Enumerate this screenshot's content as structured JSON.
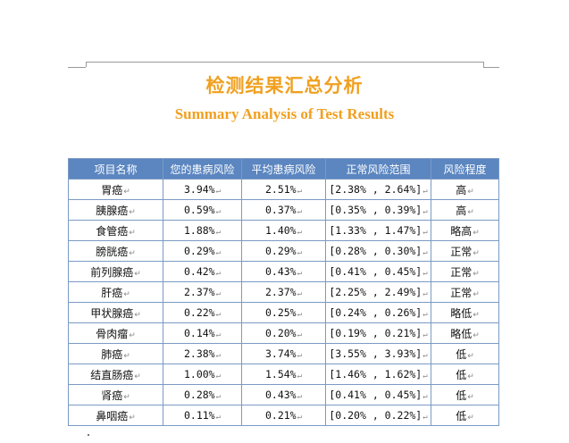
{
  "header": {
    "title_zh": "检测结果汇总分析",
    "title_en": "Summary Analysis of Test Results"
  },
  "colors": {
    "title": "#f0a020",
    "table_header_bg": "#5b86c0",
    "table_border": "#7a9ac4"
  },
  "table": {
    "columns": [
      "项目名称",
      "您的患病风险",
      "平均患病风险",
      "正常风险范围",
      "风险程度"
    ],
    "rows": [
      {
        "name": "胃癌",
        "your_risk": "3.94%",
        "avg_risk": "2.51%",
        "range": "[2.38% , 2.64%]",
        "level": "高"
      },
      {
        "name": "胰腺癌",
        "your_risk": "0.59%",
        "avg_risk": "0.37%",
        "range": "[0.35% , 0.39%]",
        "level": "高"
      },
      {
        "name": "食管癌",
        "your_risk": "1.88%",
        "avg_risk": "1.40%",
        "range": "[1.33% , 1.47%]",
        "level": "略高"
      },
      {
        "name": "膀胱癌",
        "your_risk": "0.29%",
        "avg_risk": "0.29%",
        "range": "[0.28% , 0.30%]",
        "level": "正常"
      },
      {
        "name": "前列腺癌",
        "your_risk": "0.42%",
        "avg_risk": "0.43%",
        "range": "[0.41% , 0.45%]",
        "level": "正常"
      },
      {
        "name": "肝癌",
        "your_risk": "2.37%",
        "avg_risk": "2.37%",
        "range": "[2.25% , 2.49%]",
        "level": "正常"
      },
      {
        "name": "甲状腺癌",
        "your_risk": "0.22%",
        "avg_risk": "0.25%",
        "range": "[0.24% , 0.26%]",
        "level": "略低"
      },
      {
        "name": "骨肉瘤",
        "your_risk": "0.14%",
        "avg_risk": "0.20%",
        "range": "[0.19% , 0.21%]",
        "level": "略低"
      },
      {
        "name": "肺癌",
        "your_risk": "2.38%",
        "avg_risk": "3.74%",
        "range": "[3.55% , 3.93%]",
        "level": "低"
      },
      {
        "name": "结直肠癌",
        "your_risk": "1.00%",
        "avg_risk": "1.54%",
        "range": "[1.46% , 1.62%]",
        "level": "低"
      },
      {
        "name": "肾癌",
        "your_risk": "0.28%",
        "avg_risk": "0.43%",
        "range": "[0.41% , 0.45%]",
        "level": "低"
      },
      {
        "name": "鼻咽癌",
        "your_risk": "0.11%",
        "avg_risk": "0.21%",
        "range": "[0.20% , 0.22%]",
        "level": "低"
      }
    ]
  }
}
